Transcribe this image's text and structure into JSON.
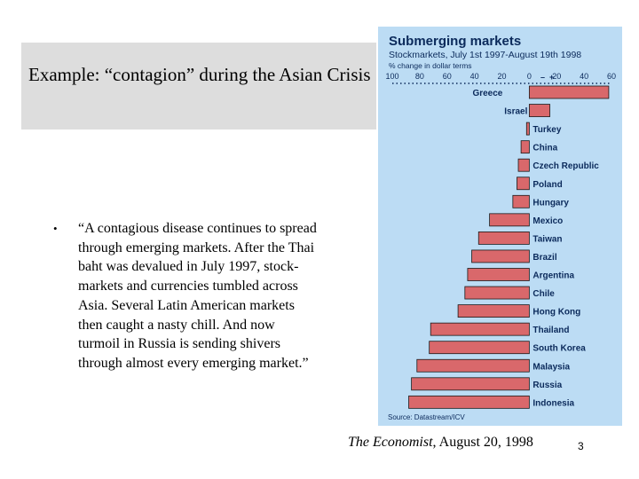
{
  "slide": {
    "title": "Example: “contagion” during the Asian Crisis",
    "bullet_symbol": "•",
    "bullet_text": "“A contagious disease continues to spread through emerging markets. After the Thai baht was devalued in July 1997, stock-markets and currencies tumbled across Asia. Several Latin American markets then caught a nasty chill. And now turmoil in Russia is sending shivers through almost every emerging market.”",
    "citation_source": "The Economist",
    "citation_date": ", August 20, 1998",
    "page_number": "3"
  },
  "chart_data": {
    "type": "bar",
    "orientation": "horizontal",
    "title": "Submerging markets",
    "subtitle": "Stockmarkets, July 1st 1997-August 19th 1998",
    "unit_label": "% change in dollar terms",
    "axis_label_minus": "–",
    "axis_label_plus": "+",
    "source": "Source: Datastream/ICV",
    "xlim": [
      -100,
      60
    ],
    "tick_values": [
      -100,
      -80,
      -60,
      -40,
      -20,
      0,
      20,
      40,
      60
    ],
    "tick_labels": [
      "100",
      "80",
      "60",
      "40",
      "20",
      "0",
      "20",
      "40",
      "60"
    ],
    "categories": [
      "Greece",
      "Israel",
      "Turkey",
      "China",
      "Czech Republic",
      "Poland",
      "Hungary",
      "Mexico",
      "Taiwan",
      "Brazil",
      "Argentina",
      "Chile",
      "Hong Kong",
      "Thailand",
      "South Korea",
      "Malaysia",
      "Russia",
      "Indonesia"
    ],
    "values": [
      58,
      15,
      -2,
      -6,
      -8,
      -9,
      -12,
      -29,
      -37,
      -42,
      -45,
      -47,
      -52,
      -72,
      -73,
      -82,
      -86,
      -88
    ],
    "colors": {
      "bar": "#d9686b",
      "bar_stroke": "#1a1a1a",
      "panel": "#bcdcf4",
      "title": "#0b2a5b",
      "label": "#0b2a5b"
    }
  }
}
